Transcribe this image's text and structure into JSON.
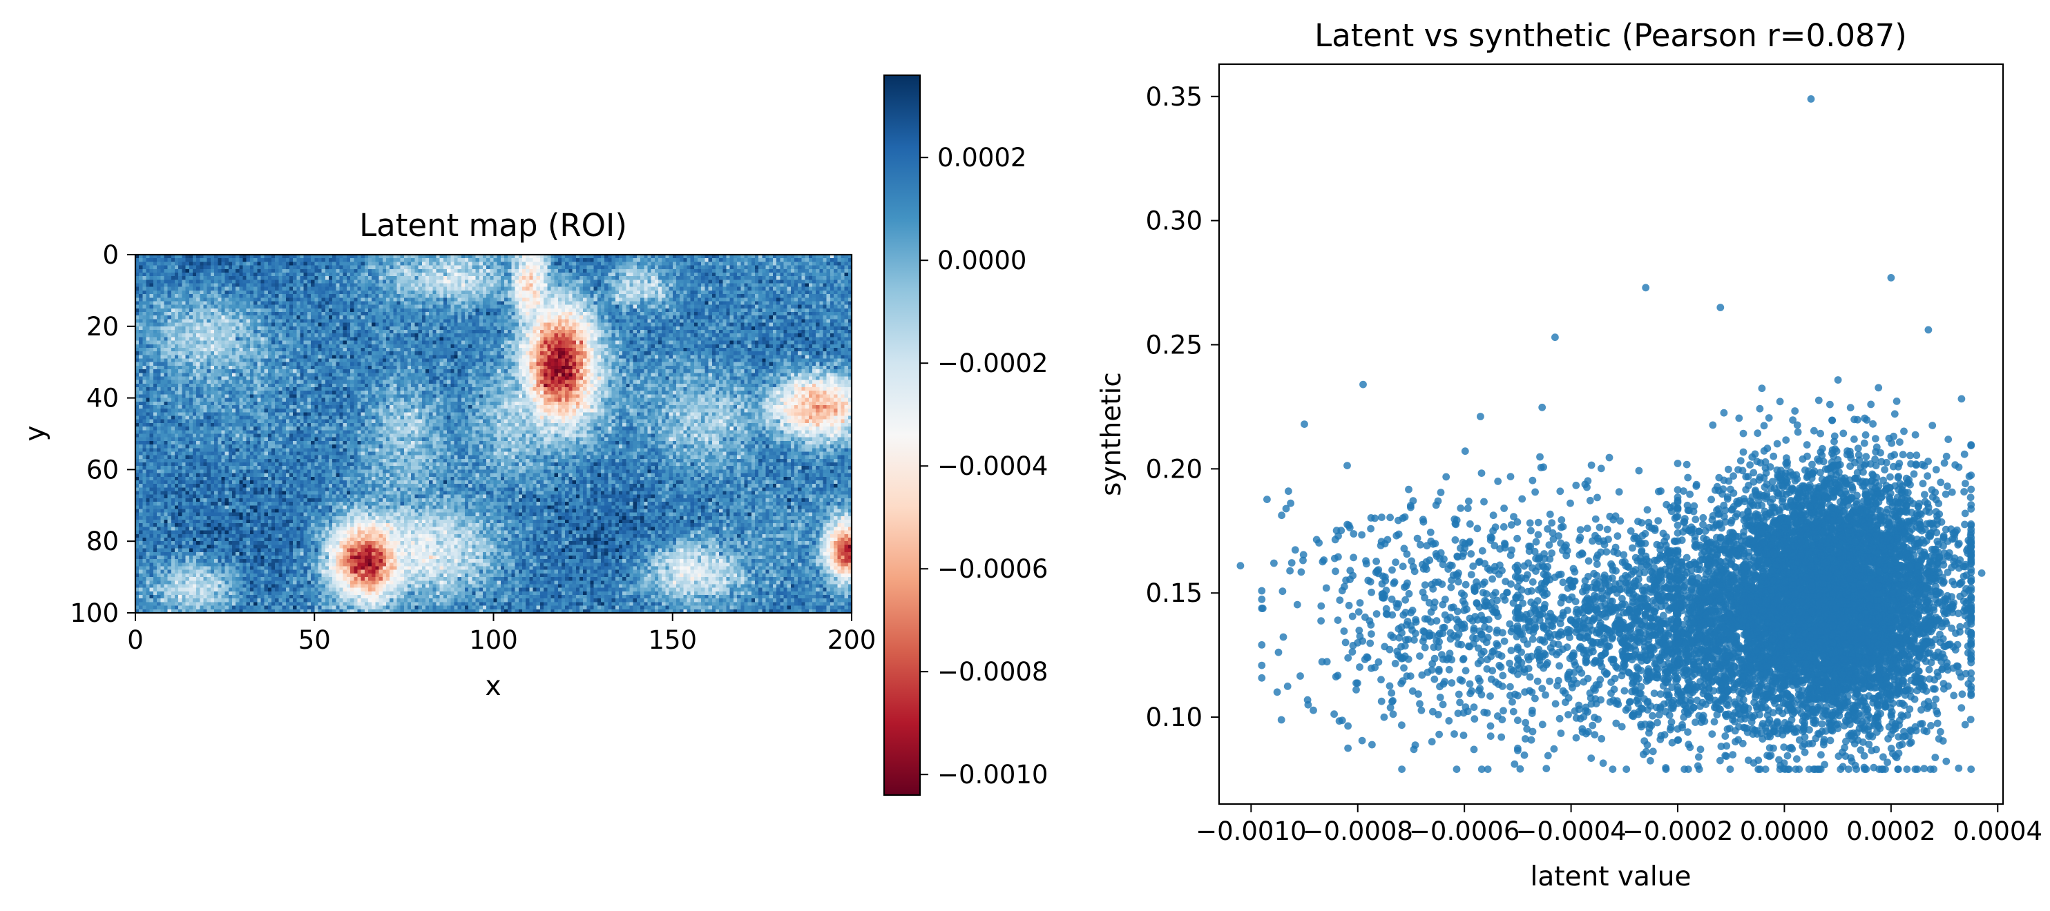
{
  "colors": {
    "scatter_point": "#1f77b4",
    "colormap": "RdBu",
    "colormap_stops": [
      "#67001f",
      "#b2182b",
      "#d6604d",
      "#f4a582",
      "#fddbc7",
      "#f7f7f7",
      "#d1e5f0",
      "#92c5de",
      "#4393c3",
      "#2166ac",
      "#053061"
    ]
  },
  "chart_data": [
    {
      "type": "heatmap",
      "title": "Latent map (ROI)",
      "xlabel": "x",
      "ylabel": "y",
      "xlim": [
        0,
        200
      ],
      "ylim": [
        100,
        0
      ],
      "x_ticks": [
        "0",
        "50",
        "100",
        "150",
        "200"
      ],
      "y_ticks": [
        "0",
        "20",
        "40",
        "60",
        "80",
        "100"
      ],
      "grid_size": [
        200,
        100
      ],
      "base_value": 0.00015,
      "noise_amplitude": 8e-05,
      "features": [
        {
          "x": 118,
          "y": 30,
          "rx": 11,
          "ry": 18,
          "value": -0.00098
        },
        {
          "x": 64,
          "y": 85,
          "rx": 11,
          "ry": 12,
          "value": -0.00093
        },
        {
          "x": 198,
          "y": 82,
          "rx": 6,
          "ry": 9,
          "value": -0.00085
        },
        {
          "x": 190,
          "y": 42,
          "rx": 15,
          "ry": 10,
          "value": -0.00062
        },
        {
          "x": 110,
          "y": 8,
          "rx": 6,
          "ry": 15,
          "value": -0.00045
        },
        {
          "x": 80,
          "y": 82,
          "rx": 20,
          "ry": 13,
          "value": -0.00028
        },
        {
          "x": 155,
          "y": 88,
          "rx": 15,
          "ry": 9,
          "value": -0.00025
        },
        {
          "x": 16,
          "y": 92,
          "rx": 12,
          "ry": 8,
          "value": -0.0002
        },
        {
          "x": 88,
          "y": 6,
          "rx": 18,
          "ry": 7,
          "value": -0.0002
        },
        {
          "x": 140,
          "y": 8,
          "rx": 10,
          "ry": 8,
          "value": -0.00018
        },
        {
          "x": 20,
          "y": 22,
          "rx": 18,
          "ry": 12,
          "value": -0.00012
        },
        {
          "x": 160,
          "y": 45,
          "rx": 18,
          "ry": 15,
          "value": -0.0001
        },
        {
          "x": 75,
          "y": 50,
          "rx": 14,
          "ry": 22,
          "value": -8e-05
        },
        {
          "x": 105,
          "y": 45,
          "rx": 15,
          "ry": 18,
          "value": -0.0001
        }
      ],
      "colorbar": {
        "vmin": -0.00104,
        "vmax": 0.00036,
        "ticks": [
          {
            "value": 0.0002,
            "label": "0.0002"
          },
          {
            "value": 0.0,
            "label": "0.0000"
          },
          {
            "value": -0.0002,
            "label": "−0.0002"
          },
          {
            "value": -0.0004,
            "label": "−0.0004"
          },
          {
            "value": -0.0006,
            "label": "−0.0006"
          },
          {
            "value": -0.0008,
            "label": "−0.0008"
          },
          {
            "value": -0.001,
            "label": "−0.0010"
          }
        ]
      }
    },
    {
      "type": "scatter",
      "title": "Latent vs synthetic (Pearson r=0.087)",
      "xlabel": "latent value",
      "ylabel": "synthetic",
      "xlim": [
        -0.00106,
        0.00041
      ],
      "ylim": [
        0.065,
        0.363
      ],
      "x_ticks": [
        {
          "value": -0.001,
          "label": "−0.0010"
        },
        {
          "value": -0.0008,
          "label": "−0.0008"
        },
        {
          "value": -0.0006,
          "label": "−0.0006"
        },
        {
          "value": -0.0004,
          "label": "−0.0004"
        },
        {
          "value": -0.0002,
          "label": "−0.0002"
        },
        {
          "value": 0.0,
          "label": "0.0000"
        },
        {
          "value": 0.0002,
          "label": "0.0002"
        },
        {
          "value": 0.0004,
          "label": "0.0004"
        }
      ],
      "y_ticks": [
        {
          "value": 0.1,
          "label": "0.10"
        },
        {
          "value": 0.15,
          "label": "0.15"
        },
        {
          "value": 0.2,
          "label": "0.20"
        },
        {
          "value": 0.25,
          "label": "0.25"
        },
        {
          "value": 0.3,
          "label": "0.30"
        },
        {
          "value": 0.35,
          "label": "0.35"
        }
      ],
      "highlighted_points": [
        {
          "x": -0.00102,
          "y": 0.161
        },
        {
          "x": 5e-05,
          "y": 0.349
        },
        {
          "x": -0.0009,
          "y": 0.218
        },
        {
          "x": -0.00079,
          "y": 0.234
        },
        {
          "x": -0.00093,
          "y": 0.191
        },
        {
          "x": -0.00043,
          "y": 0.253
        },
        {
          "x": -0.00026,
          "y": 0.273
        },
        {
          "x": -0.00012,
          "y": 0.265
        },
        {
          "x": 0.0002,
          "y": 0.277
        },
        {
          "x": 0.00027,
          "y": 0.256
        },
        {
          "x": 0.00037,
          "y": 0.158
        },
        {
          "x": 0.00028,
          "y": 0.079
        }
      ],
      "clusters": [
        {
          "count": 6000,
          "x_mean": 0.0001,
          "x_sd": 0.00011,
          "y_mean": 0.148,
          "y_sd": 0.026,
          "x_min": -0.0002,
          "x_max": 0.00035
        },
        {
          "count": 2200,
          "x_mean": -0.00015,
          "x_sd": 0.00014,
          "y_mean": 0.135,
          "y_sd": 0.022,
          "x_min": -0.0005,
          "x_max": 0.0002
        },
        {
          "count": 900,
          "x_mean": -0.00055,
          "x_sd": 0.00018,
          "y_mean": 0.14,
          "y_sd": 0.026,
          "x_min": -0.00098,
          "x_max": -0.0002
        }
      ]
    }
  ]
}
